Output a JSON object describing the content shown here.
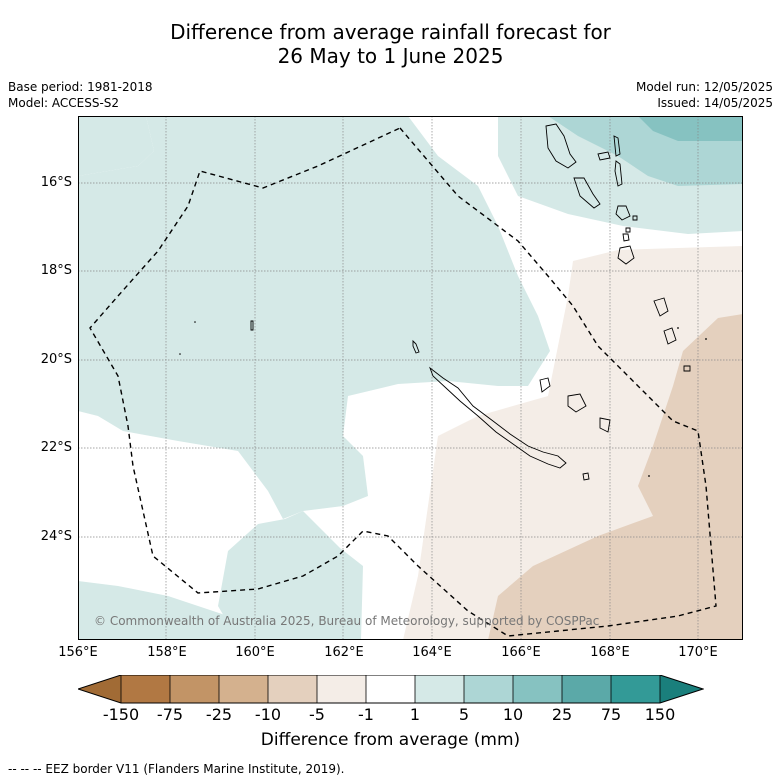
{
  "header": {
    "title_line1": "Difference from average rainfall forecast for",
    "title_line2": "26 May to 1 June 2025"
  },
  "meta_left": {
    "base_period": "Base period: 1981-2018",
    "model": "Model: ACCESS-S2"
  },
  "meta_right": {
    "model_run": "Model run: 12/05/2025",
    "issued": "Issued: 14/05/2025"
  },
  "map": {
    "lat_labels": [
      "16°S",
      "18°S",
      "20°S",
      "22°S",
      "24°S"
    ],
    "lon_labels": [
      "156°E",
      "158°E",
      "160°E",
      "162°E",
      "164°E",
      "166°E",
      "168°E",
      "170°E"
    ],
    "copyright": "© Commonwealth of Australia 2025, Bureau of Meteorology, supported by COSPPac",
    "colors": {
      "wet_light": "#d5e9e7",
      "wet_mid": "#add6d5",
      "wet_strong": "#86c2c1",
      "dry_light": "#f4ede7",
      "dry_mid": "#e4d0be",
      "neutral": "#ffffff"
    }
  },
  "legend": {
    "ticks": [
      "-150",
      "-75",
      "-25",
      "-10",
      "-5",
      "-1",
      "1",
      "5",
      "10",
      "25",
      "75",
      "150"
    ],
    "colors": [
      "#a16b35",
      "#b17843",
      "#c29466",
      "#d4b18e",
      "#e4d0be",
      "#f4ede7",
      "#ffffff",
      "#d5e9e7",
      "#add6d5",
      "#86c2c1",
      "#5ba9a8",
      "#339a97",
      "#1a7f7c"
    ],
    "title": "Difference from average (mm)"
  },
  "footnote": "--  --  -- EEZ border V11 (Flanders Marine Institute, 2019)."
}
